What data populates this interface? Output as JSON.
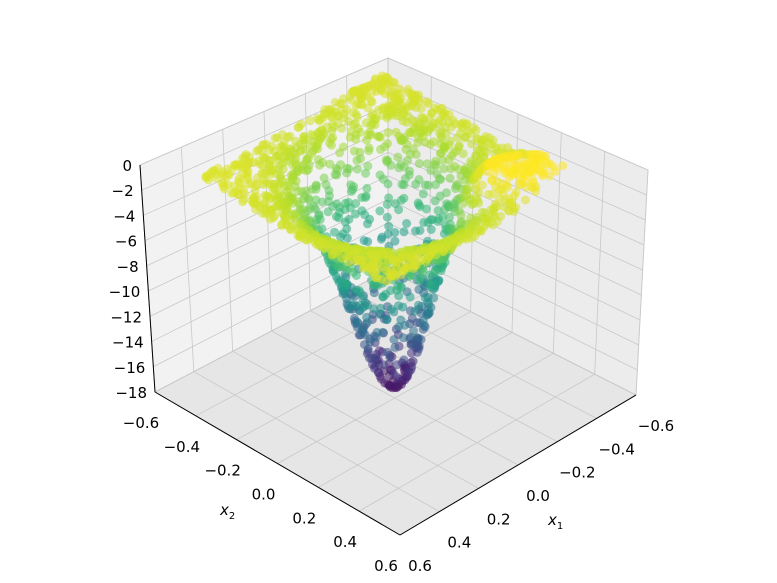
{
  "chart_data": {
    "type": "scatter",
    "projection": "3d",
    "colormap": "viridis",
    "grid": true,
    "xlabel": "x1",
    "ylabel": "x2",
    "zlabel": "",
    "xlim": [
      -0.6,
      0.6
    ],
    "ylim": [
      -0.6,
      0.6
    ],
    "zlim": [
      -18,
      0
    ],
    "x_ticks": [
      "−0.6",
      "−0.4",
      "−0.2",
      "0.0",
      "0.2",
      "0.4",
      "0.6"
    ],
    "y_ticks": [
      "−0.6",
      "−0.4",
      "−0.2",
      "0.0",
      "0.2",
      "0.4",
      "0.6"
    ],
    "z_ticks": [
      "0",
      "−2",
      "−4",
      "−6",
      "−8",
      "−10",
      "−12",
      "−14",
      "−16",
      "−18"
    ],
    "surface_description_points": [
      {
        "x": 0.0,
        "y": 0.0,
        "z": -17.5
      },
      {
        "x": 0.45,
        "y": -0.45,
        "z": -1.0
      },
      {
        "x": -0.45,
        "y": 0.45,
        "z": -1.0
      },
      {
        "x": 0.45,
        "y": 0.45,
        "z": -1.5
      },
      {
        "x": -0.45,
        "y": -0.45,
        "z": -2.5
      }
    ]
  },
  "axes": {
    "xlabel_main": "x",
    "xlabel_sub": "1",
    "ylabel_main": "x",
    "ylabel_sub": "2"
  }
}
